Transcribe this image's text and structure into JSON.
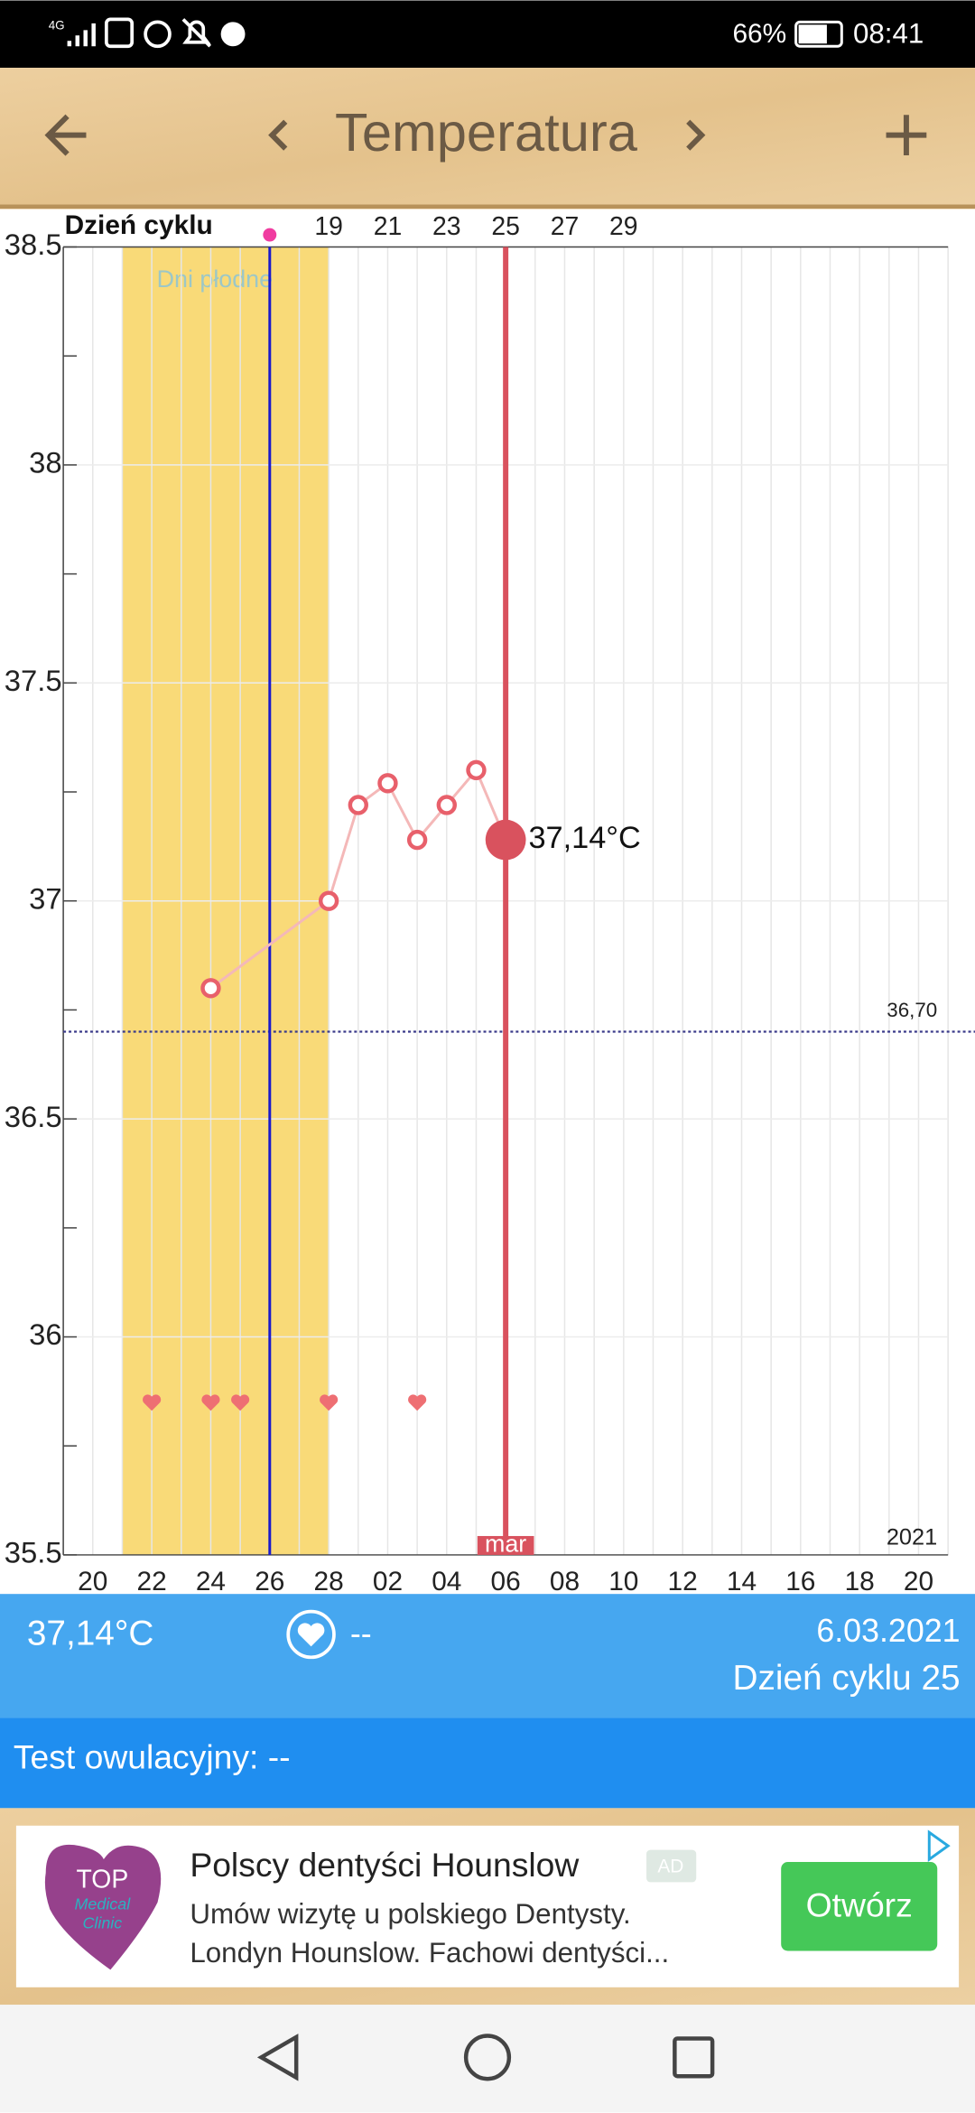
{
  "status_bar": {
    "network": "4G",
    "battery": "66%",
    "time": "08:41"
  },
  "header": {
    "title": "Temperatura"
  },
  "chart_data": {
    "type": "line",
    "x_axis_title": "Dzień cyklu",
    "categories": [
      null,
      "20",
      null,
      "22",
      null,
      "24",
      null,
      "26",
      null,
      "28",
      null,
      "02",
      null,
      "04",
      null,
      "06",
      null,
      "08",
      null,
      "10",
      null,
      "12",
      null,
      "14",
      null,
      "16",
      null,
      "18",
      null,
      "20",
      null
    ],
    "cycle_days": [
      null,
      null,
      null,
      null,
      null,
      null,
      null,
      null,
      null,
      19,
      null,
      21,
      null,
      23,
      null,
      25,
      null,
      27,
      null,
      29,
      null,
      null,
      null,
      null,
      null,
      null,
      null,
      null,
      null,
      null,
      null
    ],
    "values": [
      null,
      null,
      null,
      null,
      null,
      36.8,
      null,
      null,
      null,
      37,
      37.22,
      37.27,
      37.14,
      37.22,
      37.3,
      37.14,
      null,
      null,
      null,
      null,
      null,
      null,
      null,
      null,
      null,
      null,
      null,
      null,
      null,
      null,
      null
    ],
    "value_labels": [
      null,
      null,
      null,
      null,
      null,
      null,
      null,
      null,
      null,
      null,
      null,
      null,
      null,
      null,
      null,
      "37,14°C",
      null,
      null,
      null,
      null,
      null,
      null,
      null,
      null,
      null,
      null,
      null,
      null,
      null,
      null,
      null
    ],
    "color": "#e8606b",
    "line_color": "#f4b8b8",
    "ylim": [
      35.5,
      38.5
    ],
    "yticks": [
      35.5,
      36,
      36.5,
      37,
      37.5,
      38,
      38.5
    ],
    "yminorticks": [
      35.75,
      36.25,
      36.75,
      37.25,
      37.75,
      38.25
    ],
    "grid": true,
    "reference_line": {
      "value": 36.7,
      "label": "36,70",
      "color": "#3a3a8a"
    },
    "fertile_window": {
      "label": "Dni płodne",
      "start": 2,
      "end": 9,
      "color": "#f9da78"
    },
    "ovulation_index": 7,
    "ovulation_color": "#1a1acc",
    "selected_index": 15,
    "selected_color": "#d9525e",
    "month_label": "mar",
    "year": "2021",
    "intercourse_days": [
      3,
      5,
      6,
      9,
      12
    ]
  },
  "info": {
    "temperature": "37,14°C",
    "intercourse": "--",
    "date": "6.03.2021",
    "cycle_day": "Dzień cyklu 25",
    "ovulation_test": "Test owulacyjny: --"
  },
  "ad": {
    "logo_top": "TOP",
    "logo_sub1": "Medical",
    "logo_sub2": "Clinic",
    "title": "Polscy dentyści Hounslow",
    "badge": "AD",
    "line1": "Umów wizytę u polskiego Dentysty.",
    "line2": "Londyn Hounslow. Fachowi dentyści...",
    "button": "Otwórz"
  }
}
